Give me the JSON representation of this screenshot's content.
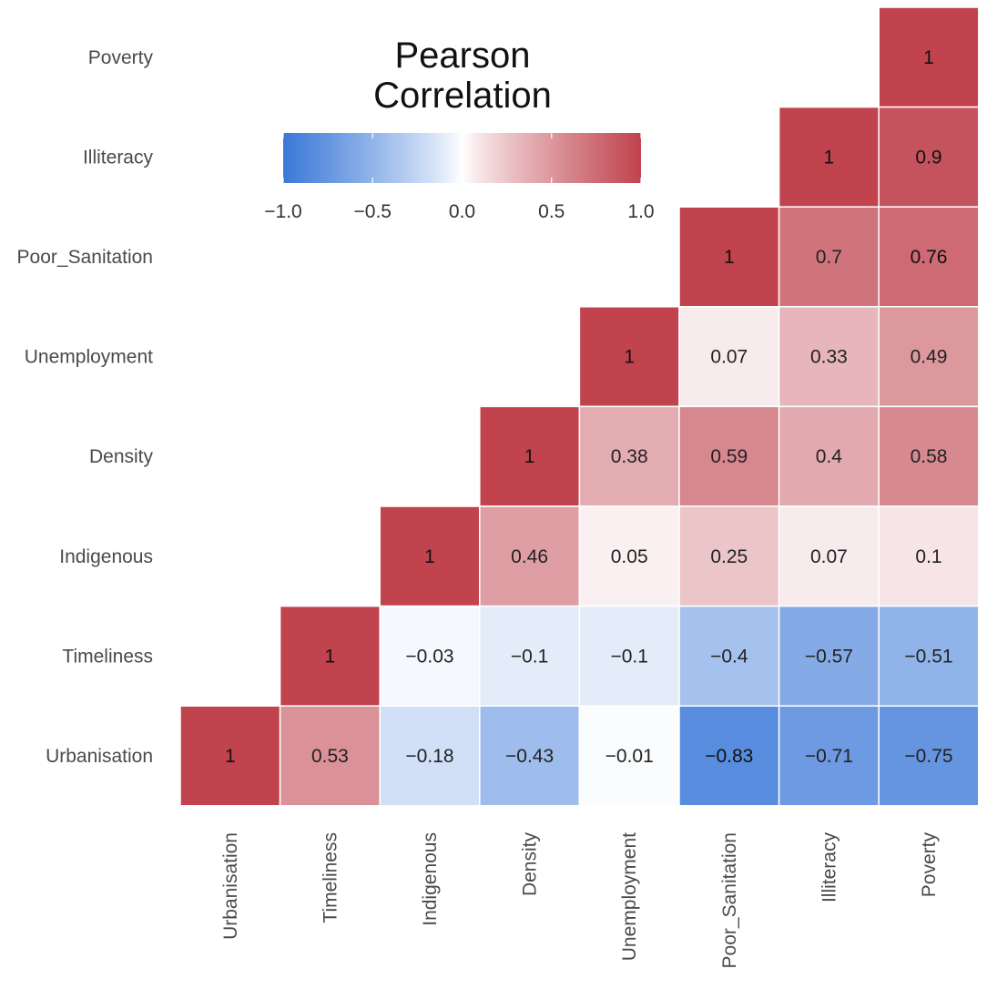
{
  "chart_data": {
    "type": "heatmap",
    "title": [
      "Pearson",
      "Correlation"
    ],
    "variables": [
      "Urbanisation",
      "Timeliness",
      "Indigenous",
      "Density",
      "Unemployment",
      "Poor_Sanitation",
      "Illiteracy",
      "Poverty"
    ],
    "row_order_top_to_bottom": [
      "Poverty",
      "Illiteracy",
      "Poor_Sanitation",
      "Unemployment",
      "Density",
      "Indigenous",
      "Timeliness",
      "Urbanisation"
    ],
    "cells": [
      {
        "row": "Poverty",
        "col": "Poverty",
        "value": 1,
        "label": "1"
      },
      {
        "row": "Illiteracy",
        "col": "Illiteracy",
        "value": 1,
        "label": "1"
      },
      {
        "row": "Illiteracy",
        "col": "Poverty",
        "value": 0.9,
        "label": "0.9"
      },
      {
        "row": "Poor_Sanitation",
        "col": "Poor_Sanitation",
        "value": 1,
        "label": "1"
      },
      {
        "row": "Poor_Sanitation",
        "col": "Illiteracy",
        "value": 0.7,
        "label": "0.7"
      },
      {
        "row": "Poor_Sanitation",
        "col": "Poverty",
        "value": 0.76,
        "label": "0.76"
      },
      {
        "row": "Unemployment",
        "col": "Unemployment",
        "value": 1,
        "label": "1"
      },
      {
        "row": "Unemployment",
        "col": "Poor_Sanitation",
        "value": 0.07,
        "label": "0.07"
      },
      {
        "row": "Unemployment",
        "col": "Illiteracy",
        "value": 0.33,
        "label": "0.33"
      },
      {
        "row": "Unemployment",
        "col": "Poverty",
        "value": 0.49,
        "label": "0.49"
      },
      {
        "row": "Density",
        "col": "Density",
        "value": 1,
        "label": "1"
      },
      {
        "row": "Density",
        "col": "Unemployment",
        "value": 0.38,
        "label": "0.38"
      },
      {
        "row": "Density",
        "col": "Poor_Sanitation",
        "value": 0.59,
        "label": "0.59"
      },
      {
        "row": "Density",
        "col": "Illiteracy",
        "value": 0.4,
        "label": "0.4"
      },
      {
        "row": "Density",
        "col": "Poverty",
        "value": 0.58,
        "label": "0.58"
      },
      {
        "row": "Indigenous",
        "col": "Indigenous",
        "value": 1,
        "label": "1"
      },
      {
        "row": "Indigenous",
        "col": "Density",
        "value": 0.46,
        "label": "0.46"
      },
      {
        "row": "Indigenous",
        "col": "Unemployment",
        "value": 0.05,
        "label": "0.05"
      },
      {
        "row": "Indigenous",
        "col": "Poor_Sanitation",
        "value": 0.25,
        "label": "0.25"
      },
      {
        "row": "Indigenous",
        "col": "Illiteracy",
        "value": 0.07,
        "label": "0.07"
      },
      {
        "row": "Indigenous",
        "col": "Poverty",
        "value": 0.1,
        "label": "0.1"
      },
      {
        "row": "Timeliness",
        "col": "Timeliness",
        "value": 1,
        "label": "1"
      },
      {
        "row": "Timeliness",
        "col": "Indigenous",
        "value": -0.03,
        "label": "−0.03"
      },
      {
        "row": "Timeliness",
        "col": "Density",
        "value": -0.1,
        "label": "−0.1"
      },
      {
        "row": "Timeliness",
        "col": "Unemployment",
        "value": -0.1,
        "label": "−0.1"
      },
      {
        "row": "Timeliness",
        "col": "Poor_Sanitation",
        "value": -0.4,
        "label": "−0.4"
      },
      {
        "row": "Timeliness",
        "col": "Illiteracy",
        "value": -0.57,
        "label": "−0.57"
      },
      {
        "row": "Timeliness",
        "col": "Poverty",
        "value": -0.51,
        "label": "−0.51"
      },
      {
        "row": "Urbanisation",
        "col": "Urbanisation",
        "value": 1,
        "label": "1"
      },
      {
        "row": "Urbanisation",
        "col": "Timeliness",
        "value": 0.53,
        "label": "0.53"
      },
      {
        "row": "Urbanisation",
        "col": "Indigenous",
        "value": -0.18,
        "label": "−0.18"
      },
      {
        "row": "Urbanisation",
        "col": "Density",
        "value": -0.43,
        "label": "−0.43"
      },
      {
        "row": "Urbanisation",
        "col": "Unemployment",
        "value": -0.01,
        "label": "−0.01"
      },
      {
        "row": "Urbanisation",
        "col": "Poor_Sanitation",
        "value": -0.83,
        "label": "−0.83"
      },
      {
        "row": "Urbanisation",
        "col": "Illiteracy",
        "value": -0.71,
        "label": "−0.71"
      },
      {
        "row": "Urbanisation",
        "col": "Poverty",
        "value": -0.75,
        "label": "−0.75"
      }
    ],
    "colorbar": {
      "range": [
        -1.0,
        1.0
      ],
      "ticks": [
        -1.0,
        -0.5,
        0.0,
        0.5,
        1.0
      ],
      "tick_labels": [
        "−1.0",
        "−0.5",
        "0.0",
        "0.5",
        "1.0"
      ],
      "orientation": "horizontal"
    },
    "colormap": {
      "negative": "#3b78d8",
      "zero": "#ffffff",
      "positive": "#c0434e"
    },
    "grid": false
  }
}
